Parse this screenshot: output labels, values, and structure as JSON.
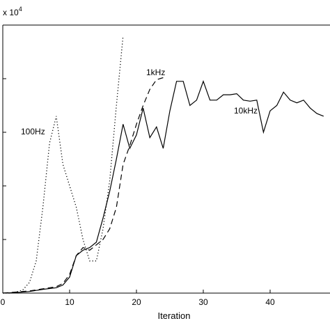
{
  "chart_data": {
    "type": "line",
    "title": "",
    "xlabel": "Iteration",
    "ylabel": "",
    "y_multiplier_label": "x 10",
    "y_multiplier_exponent": "4",
    "xlim": [
      0,
      48
    ],
    "ylim": [
      0,
      5
    ],
    "x_ticks": [
      0,
      10,
      20,
      30,
      40
    ],
    "x_tick_labels": [
      "0",
      "10",
      "20",
      "30",
      "40"
    ],
    "y_ticks": [
      1,
      2,
      3,
      4
    ],
    "grid": false,
    "legend": "none",
    "series": [
      {
        "name": "100Hz",
        "line_style": "dotted",
        "color": "#000000",
        "x": [
          0,
          1,
          2,
          3,
          4,
          5,
          6,
          7,
          8,
          9,
          10,
          11,
          12,
          13,
          14,
          15,
          16,
          17,
          18
        ],
        "y": [
          0.0,
          0.0,
          0.02,
          0.06,
          0.2,
          0.6,
          1.6,
          2.8,
          3.3,
          2.4,
          2.0,
          1.6,
          1.0,
          0.6,
          0.6,
          1.2,
          2.1,
          3.5,
          4.8
        ]
      },
      {
        "name": "1kHz",
        "line_style": "dashed",
        "color": "#000000",
        "x": [
          0,
          2,
          4,
          6,
          8,
          9,
          10,
          11,
          12,
          13,
          14,
          15,
          16,
          17,
          18,
          19,
          20,
          21,
          22,
          23,
          24
        ],
        "y": [
          0.0,
          0.02,
          0.04,
          0.08,
          0.12,
          0.18,
          0.35,
          0.7,
          0.85,
          0.8,
          0.9,
          1.0,
          1.2,
          1.6,
          2.4,
          2.75,
          3.15,
          3.5,
          3.8,
          3.98,
          4.02
        ]
      },
      {
        "name": "10kHz",
        "line_style": "solid",
        "color": "#000000",
        "x": [
          0,
          2,
          4,
          6,
          8,
          9,
          10,
          11,
          12,
          13,
          14,
          15,
          16,
          17,
          18,
          19,
          20,
          21,
          22,
          23,
          24,
          25,
          26,
          27,
          28,
          29,
          30,
          31,
          32,
          33,
          34,
          35,
          36,
          37,
          38,
          39,
          40,
          41,
          42,
          43,
          44,
          45,
          46,
          47,
          48
        ],
        "y": [
          0.0,
          0.01,
          0.03,
          0.07,
          0.1,
          0.15,
          0.3,
          0.7,
          0.8,
          0.85,
          0.95,
          1.4,
          1.9,
          2.5,
          3.15,
          2.7,
          2.95,
          3.45,
          2.9,
          3.1,
          2.7,
          3.4,
          3.95,
          3.95,
          3.5,
          3.6,
          3.95,
          3.6,
          3.6,
          3.7,
          3.7,
          3.72,
          3.6,
          3.58,
          3.6,
          3.0,
          3.4,
          3.5,
          3.75,
          3.6,
          3.55,
          3.6,
          3.45,
          3.35,
          3.3
        ]
      }
    ],
    "annotations": [
      {
        "text": "100Hz",
        "series": "100Hz"
      },
      {
        "text": "1kHz",
        "series": "1kHz"
      },
      {
        "text": "10kHz",
        "series": "10kHz"
      }
    ]
  }
}
